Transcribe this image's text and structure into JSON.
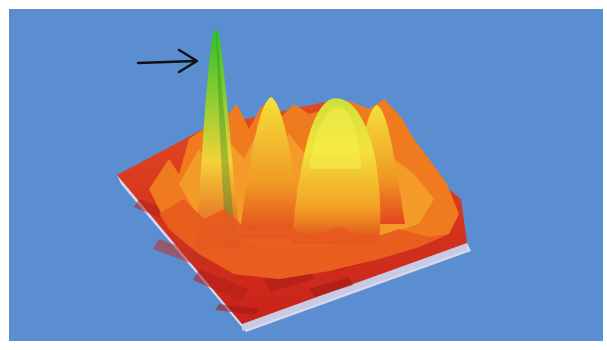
{
  "scene": {
    "title": "",
    "background_color": "#5b8ed0",
    "surface_colors": {
      "base_low": "#d9301f",
      "mid": "#f07a1e",
      "high": "#f4e23a",
      "peak": "#2fbf2f",
      "base_slab": "#d8d9ef"
    },
    "annotation": {
      "type": "arrow",
      "points_to": "tall-green-peak",
      "color": "#111111"
    }
  }
}
